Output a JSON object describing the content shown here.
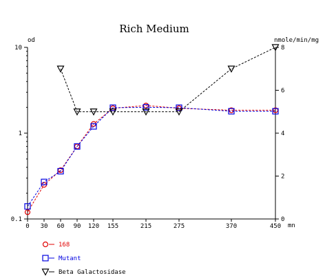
{
  "chart_data": {
    "type": "line",
    "title": "Rich Medium",
    "ylabel_left": "od",
    "ylabel_right": "nmole/min/mg",
    "xlabel": "mn",
    "x_ticks": [
      0,
      30,
      60,
      90,
      120,
      155,
      215,
      275,
      370,
      450
    ],
    "x_range": [
      0,
      450
    ],
    "left_axis": {
      "scale": "log",
      "range": [
        0.1,
        10
      ],
      "ticks": [
        0.1,
        1,
        10
      ],
      "tick_labels": [
        "0.1",
        "1",
        "10"
      ]
    },
    "right_axis": {
      "scale": "linear",
      "range": [
        0,
        8
      ],
      "ticks": [
        0,
        2,
        4,
        6,
        8
      ],
      "tick_labels": [
        "0",
        "2",
        "4",
        "6",
        "8"
      ]
    },
    "grid": false,
    "legend_position": "bottom-left",
    "series": [
      {
        "name": "168",
        "axis": "left",
        "marker": "circle",
        "color": "#e00000",
        "x": [
          0,
          30,
          60,
          90,
          120,
          155,
          215,
          275,
          370,
          450
        ],
        "y": [
          0.12,
          0.25,
          0.37,
          0.7,
          1.28,
          1.95,
          2.1,
          1.95,
          1.85,
          1.85
        ]
      },
      {
        "name": "Mutant",
        "axis": "left",
        "marker": "square",
        "color": "#0000e0",
        "x": [
          0,
          30,
          60,
          90,
          120,
          155,
          215,
          275,
          370,
          450
        ],
        "y": [
          0.14,
          0.27,
          0.36,
          0.7,
          1.2,
          1.98,
          2.0,
          1.98,
          1.8,
          1.8
        ]
      },
      {
        "name": "Beta Galactosidase",
        "axis": "right",
        "marker": "triangle-down",
        "color": "#000000",
        "x": [
          60,
          90,
          120,
          155,
          215,
          275,
          370,
          450
        ],
        "y": [
          7.0,
          5.0,
          5.0,
          5.0,
          5.0,
          5.0,
          7.0,
          8.0
        ]
      }
    ]
  }
}
